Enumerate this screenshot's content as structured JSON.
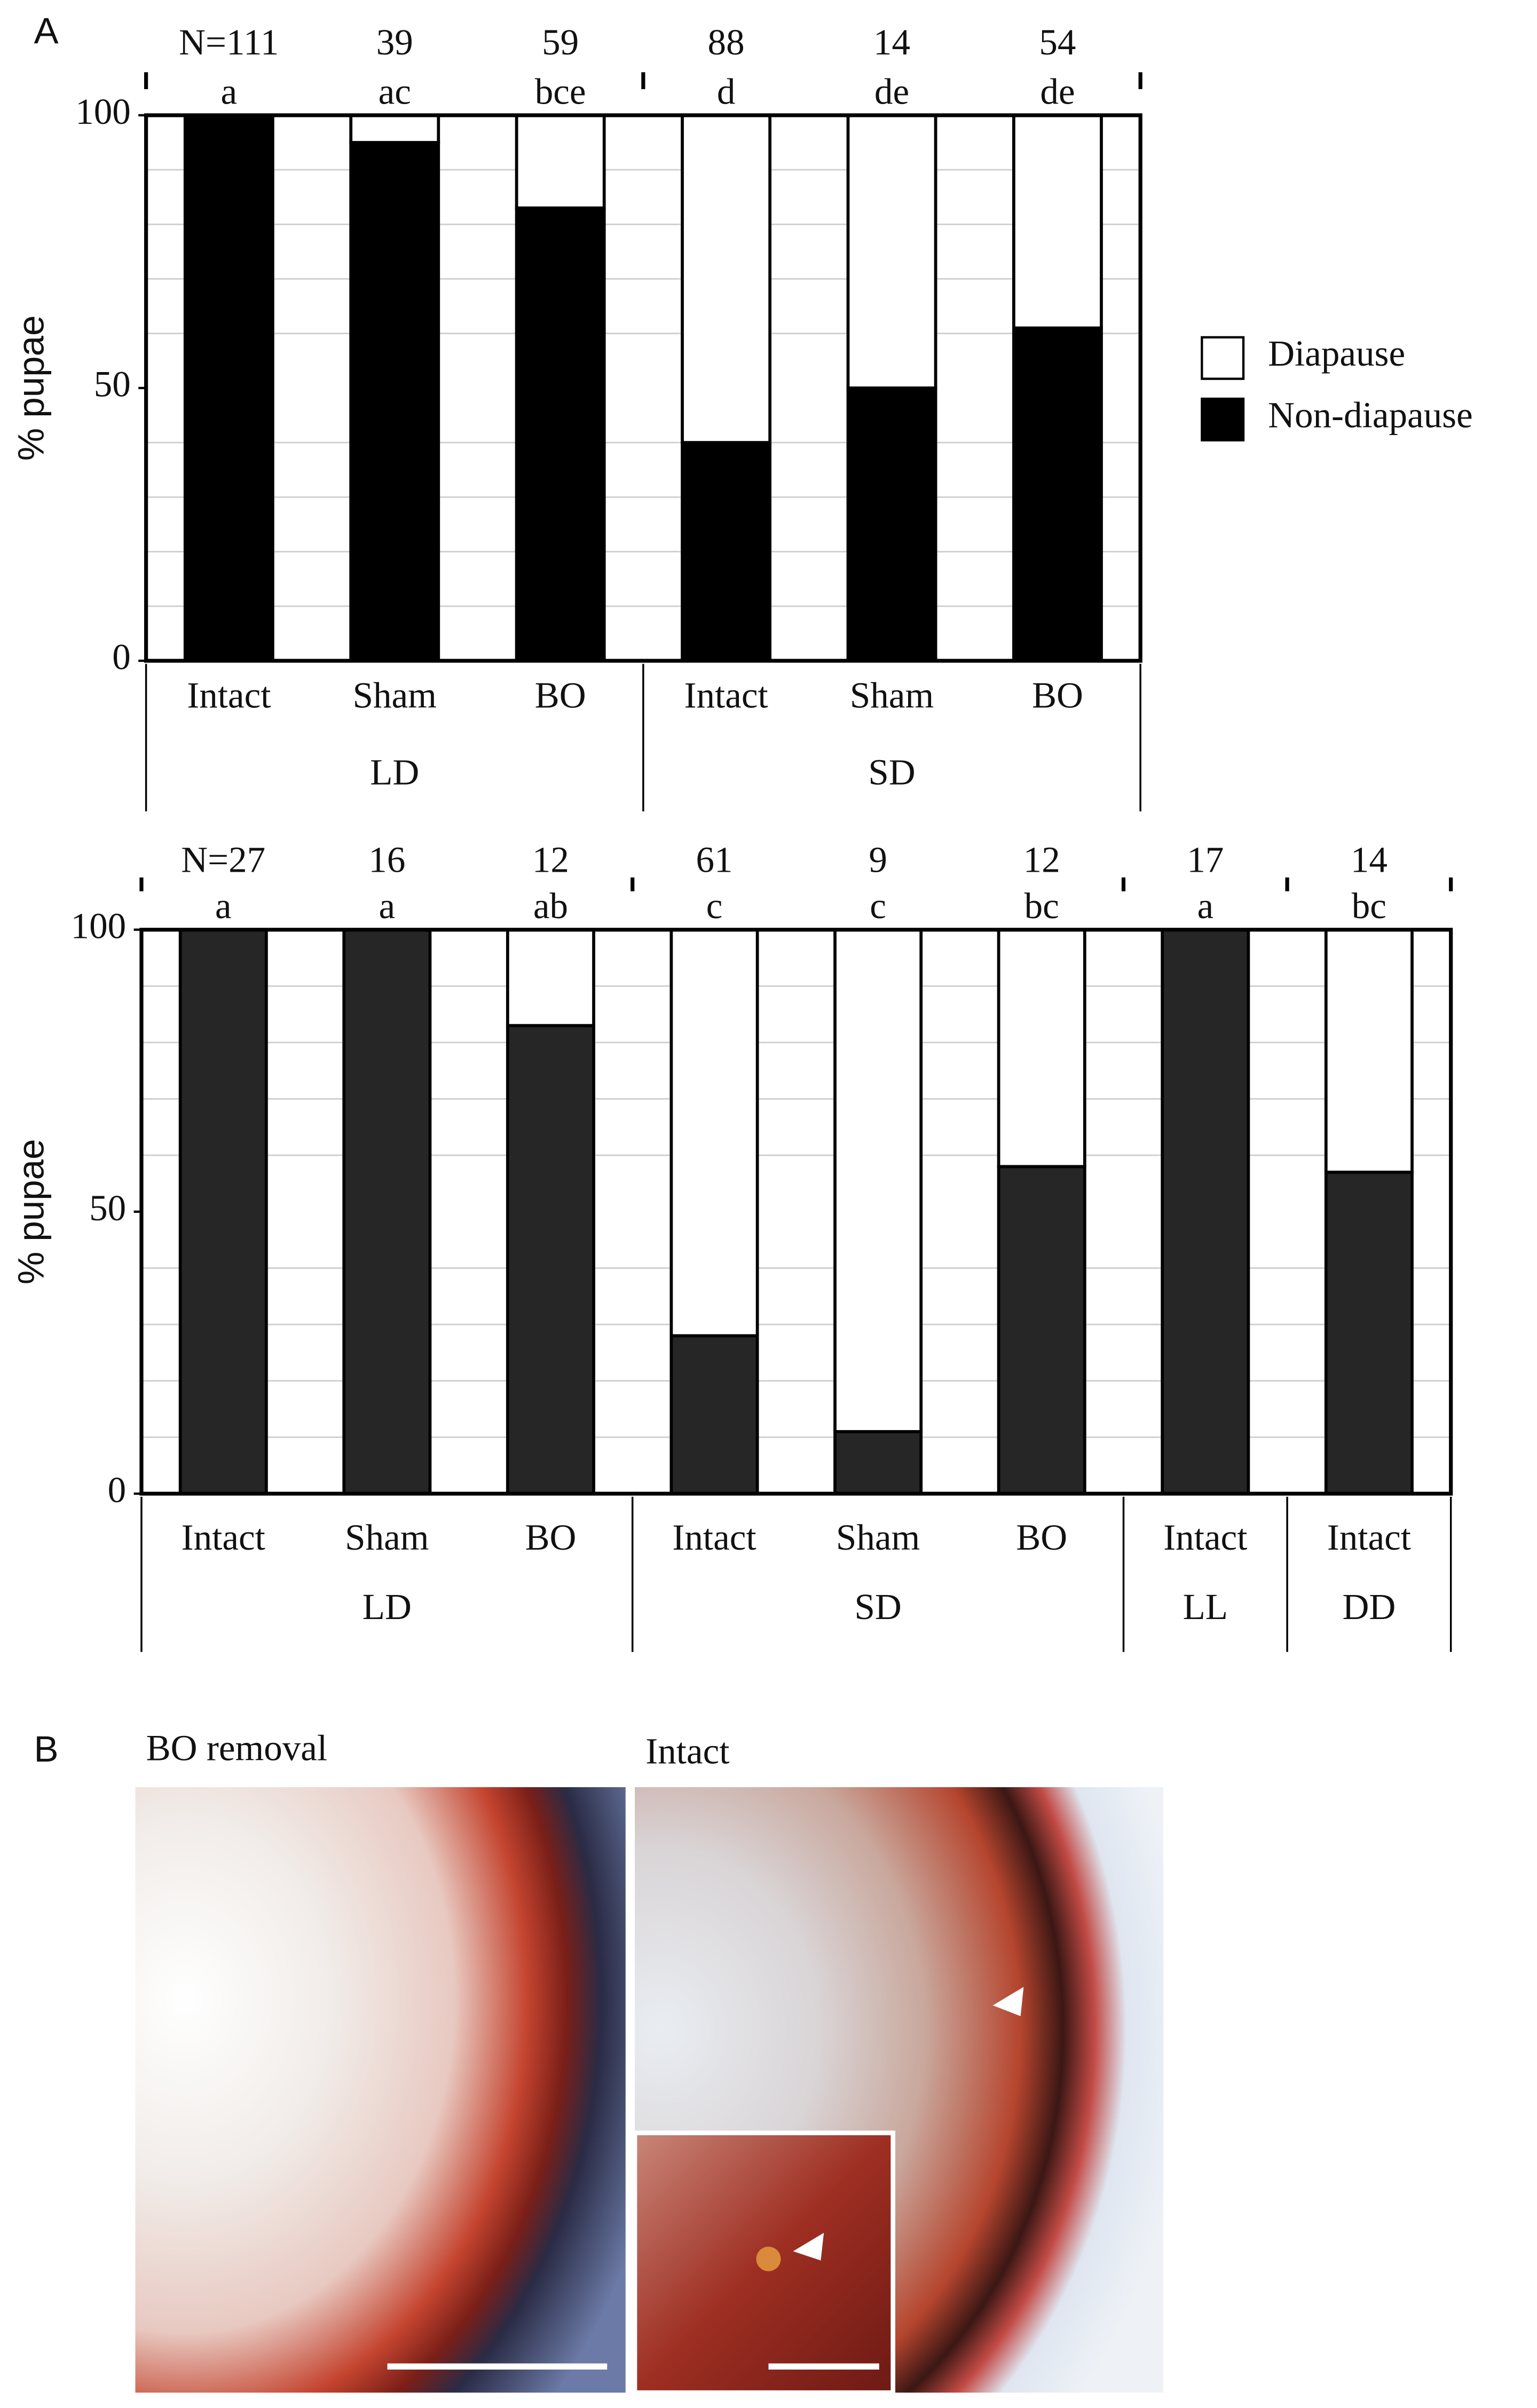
{
  "panel_a_label": "A",
  "chart_data": [
    {
      "type": "stacked_bar",
      "y_label": "% pupae",
      "groups": [
        {
          "name": "LD",
          "categories": [
            "Intact",
            "Sham",
            "BO"
          ]
        },
        {
          "name": "SD",
          "categories": [
            "Intact",
            "Sham",
            "BO"
          ]
        }
      ],
      "n_labels": [
        "N=111",
        39,
        59,
        88,
        14,
        54
      ],
      "letters": [
        "a",
        "ac",
        "bce",
        "d",
        "de",
        "de"
      ],
      "series": [
        {
          "name": "Non-diapause",
          "color": "#000000",
          "values": [
            100,
            95,
            83,
            40,
            50,
            61
          ]
        },
        {
          "name": "Diapause",
          "color": "#ffffff",
          "values": [
            0,
            5,
            17,
            60,
            50,
            39
          ]
        }
      ],
      "ylim": [
        0,
        100
      ],
      "yticks": [
        0,
        50,
        100
      ],
      "minor_yticks": [
        10,
        20,
        30,
        40,
        60,
        70,
        80,
        90
      ],
      "grid": true,
      "legend": "right"
    },
    {
      "type": "stacked_bar",
      "y_label": "% pupae",
      "groups": [
        {
          "name": "LD",
          "categories": [
            "Intact",
            "Sham",
            "BO"
          ]
        },
        {
          "name": "SD",
          "categories": [
            "Intact",
            "Sham",
            "BO"
          ]
        },
        {
          "name": "LL",
          "categories": [
            "Intact"
          ]
        },
        {
          "name": "DD",
          "categories": [
            "Intact"
          ]
        }
      ],
      "n_labels": [
        "N=27",
        16,
        12,
        61,
        9,
        12,
        17,
        14
      ],
      "letters": [
        "a",
        "a",
        "ab",
        "c",
        "c",
        "bc",
        "a",
        "bc"
      ],
      "series": [
        {
          "name": "Non-diapause",
          "color": "#262626",
          "values": [
            100,
            100,
            83,
            28,
            11,
            58,
            100,
            57
          ]
        },
        {
          "name": "Diapause",
          "color": "#ffffff",
          "values": [
            0,
            0,
            17,
            72,
            89,
            42,
            0,
            43
          ]
        }
      ],
      "ylim": [
        0,
        100
      ],
      "yticks": [
        0,
        50,
        100
      ],
      "minor_yticks": [
        10,
        20,
        30,
        40,
        60,
        70,
        80,
        90
      ],
      "grid": true
    }
  ],
  "panel_b": {
    "label": "B",
    "images": [
      {
        "title": "BO removal"
      },
      {
        "title": "Intact"
      }
    ]
  }
}
